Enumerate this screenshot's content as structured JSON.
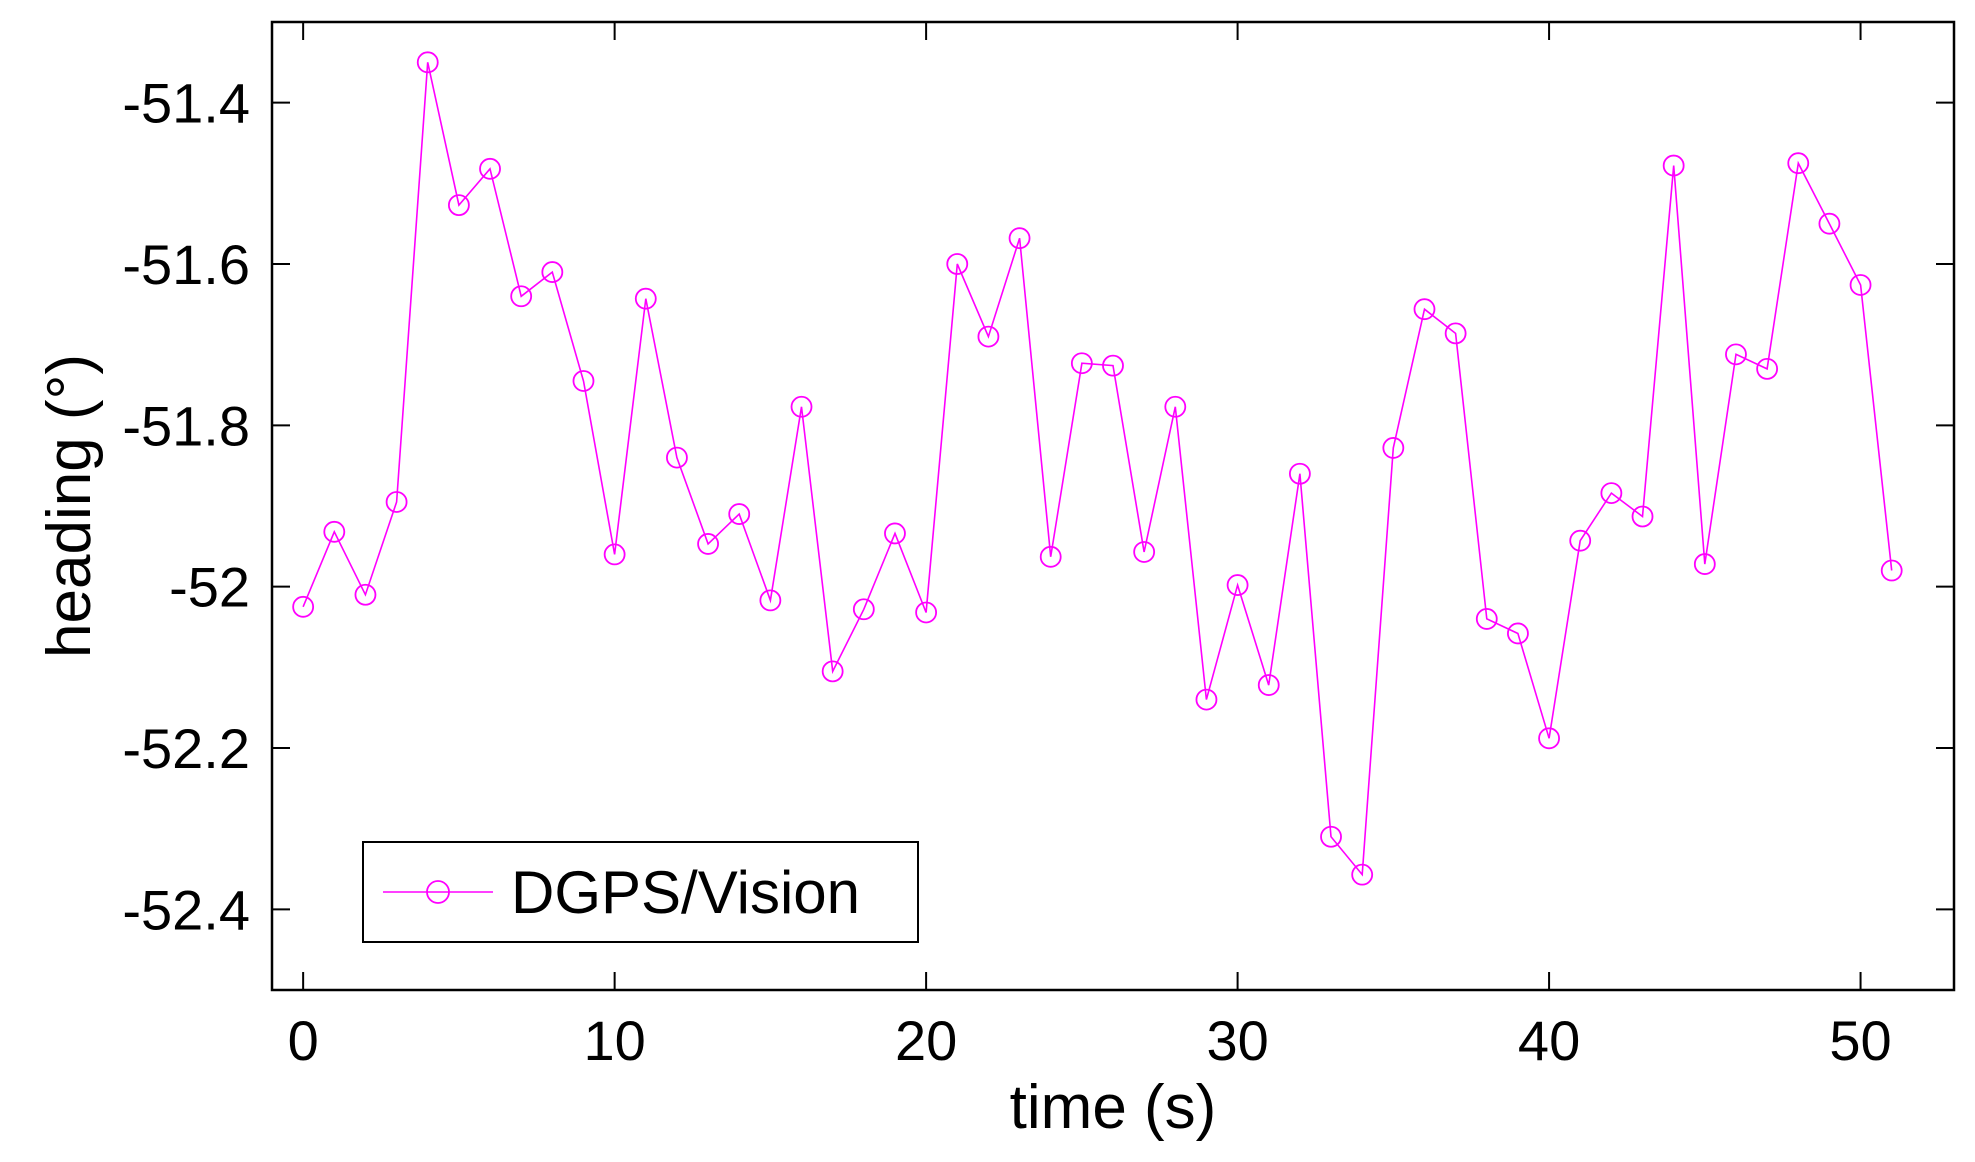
{
  "chart_data": {
    "type": "line",
    "title": "",
    "xlabel": "time (s)",
    "ylabel": "heading (°)",
    "xlim": [
      -1,
      53
    ],
    "ylim": [
      -52.5,
      -51.3
    ],
    "xticks": [
      0,
      10,
      20,
      30,
      40,
      50
    ],
    "yticks": [
      -51.4,
      -51.6,
      -51.8,
      -52,
      -52.2,
      -52.4
    ],
    "xtick_labels": [
      "0",
      "10",
      "20",
      "30",
      "40",
      "50"
    ],
    "ytick_labels": [
      "-51.4",
      "-51.6",
      "-51.8",
      "-52",
      "-52.2",
      "-52.4"
    ],
    "grid": false,
    "legend_position": "bottom-left",
    "series": [
      {
        "name": "DGPS/Vision",
        "color": "#ff00ff",
        "marker": "circle",
        "x": [
          0,
          1,
          2,
          3,
          4,
          5,
          6,
          7,
          8,
          9,
          10,
          11,
          12,
          13,
          14,
          15,
          16,
          17,
          18,
          19,
          20,
          21,
          22,
          23,
          24,
          25,
          26,
          27,
          28,
          29,
          30,
          31,
          32,
          33,
          34,
          35,
          36,
          37,
          38,
          39,
          40,
          41,
          42,
          43,
          44,
          45,
          46,
          47,
          48,
          49,
          50,
          51
        ],
        "values": [
          -52.025,
          -51.932,
          -52.01,
          -51.895,
          -51.35,
          -51.527,
          -51.482,
          -51.64,
          -51.61,
          -51.745,
          -51.96,
          -51.643,
          -51.84,
          -51.947,
          -51.91,
          -52.017,
          -51.777,
          -52.105,
          -52.028,
          -51.934,
          -52.032,
          -51.6,
          -51.69,
          -51.568,
          -51.963,
          -51.723,
          -51.726,
          -51.957,
          -51.777,
          -52.14,
          -51.998,
          -52.122,
          -51.86,
          -52.31,
          -52.357,
          -51.828,
          -51.656,
          -51.686,
          -52.04,
          -52.058,
          -52.188,
          -51.943,
          -51.884,
          -51.913,
          -51.478,
          -51.972,
          -51.712,
          -51.73,
          -51.475,
          -51.55,
          -51.626,
          -51.98
        ]
      }
    ]
  }
}
